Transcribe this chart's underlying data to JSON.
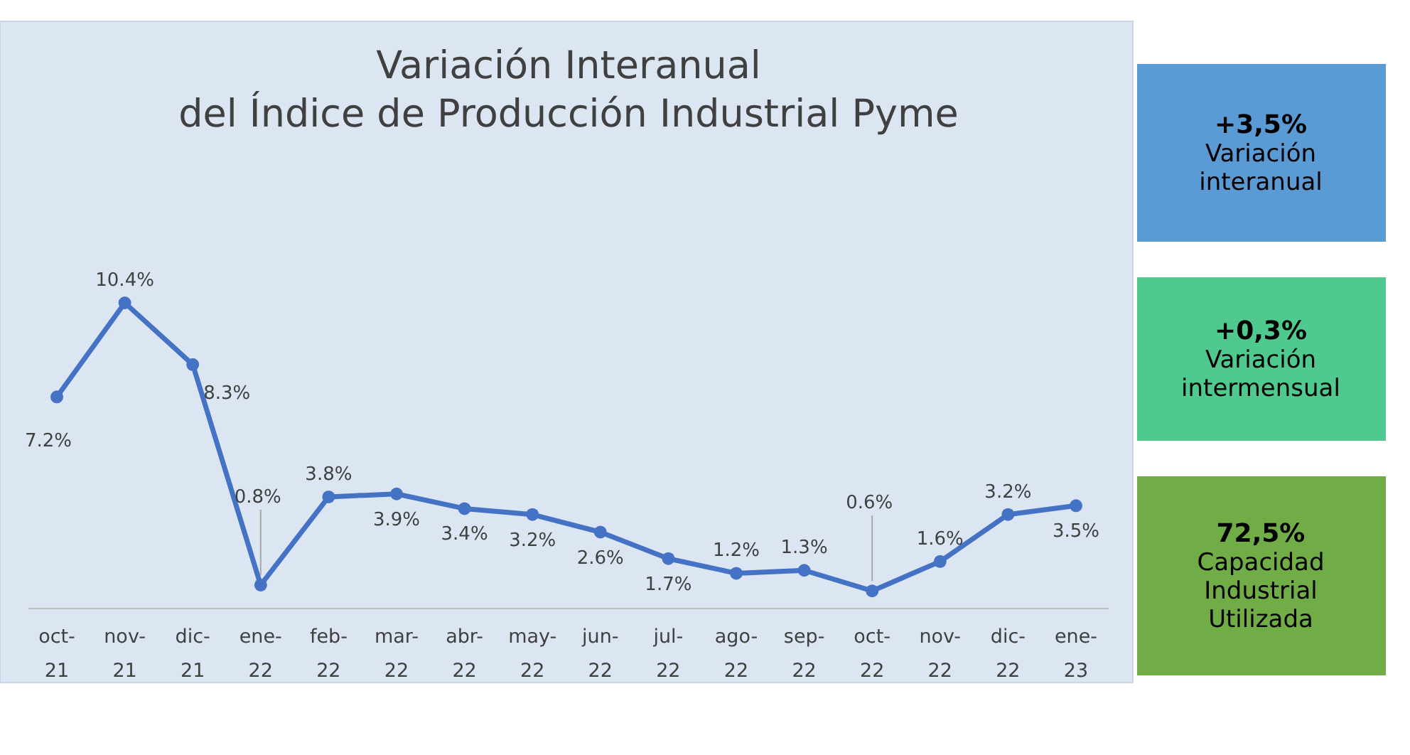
{
  "chart_data": [
    {
      "type": "line",
      "title": "Variación Interanual\ndel Índice de Producción Industrial Pyme",
      "categories": [
        "oct-21",
        "nov-21",
        "dic-21",
        "ene-22",
        "feb-22",
        "mar-22",
        "abr-22",
        "may-22",
        "jun-22",
        "jul-22",
        "ago-22",
        "sep-22",
        "oct-22",
        "nov-22",
        "dic-22",
        "ene-23"
      ],
      "series": [
        {
          "color": "#4472c4",
          "values": [
            7.2,
            10.4,
            8.3,
            0.8,
            3.8,
            3.9,
            3.4,
            3.2,
            2.6,
            1.7,
            1.2,
            1.3,
            0.6,
            1.6,
            3.2,
            3.5
          ],
          "value_labels": [
            "7.2%",
            "10.4%",
            "8.3%",
            "0.8%",
            "3.8%",
            "3.9%",
            "3.4%",
            "3.2%",
            "2.6%",
            "1.7%",
            "1.2%",
            "1.3%",
            "0.6%",
            "1.6%",
            "3.2%",
            "3.5%"
          ]
        }
      ],
      "data_labels": true,
      "marker": "circle",
      "line_style": "solid"
    },
    {
      "type": "other",
      "annotations": [
        "+3,5%",
        "Variación interanual",
        "+0,3%",
        "Variación intermensual",
        "72,5%",
        "Capacidad Industrial Utilizada"
      ],
      "colors": [
        "#5b9bd5",
        "#4fc98e",
        "#70ad47"
      ]
    }
  ]
}
